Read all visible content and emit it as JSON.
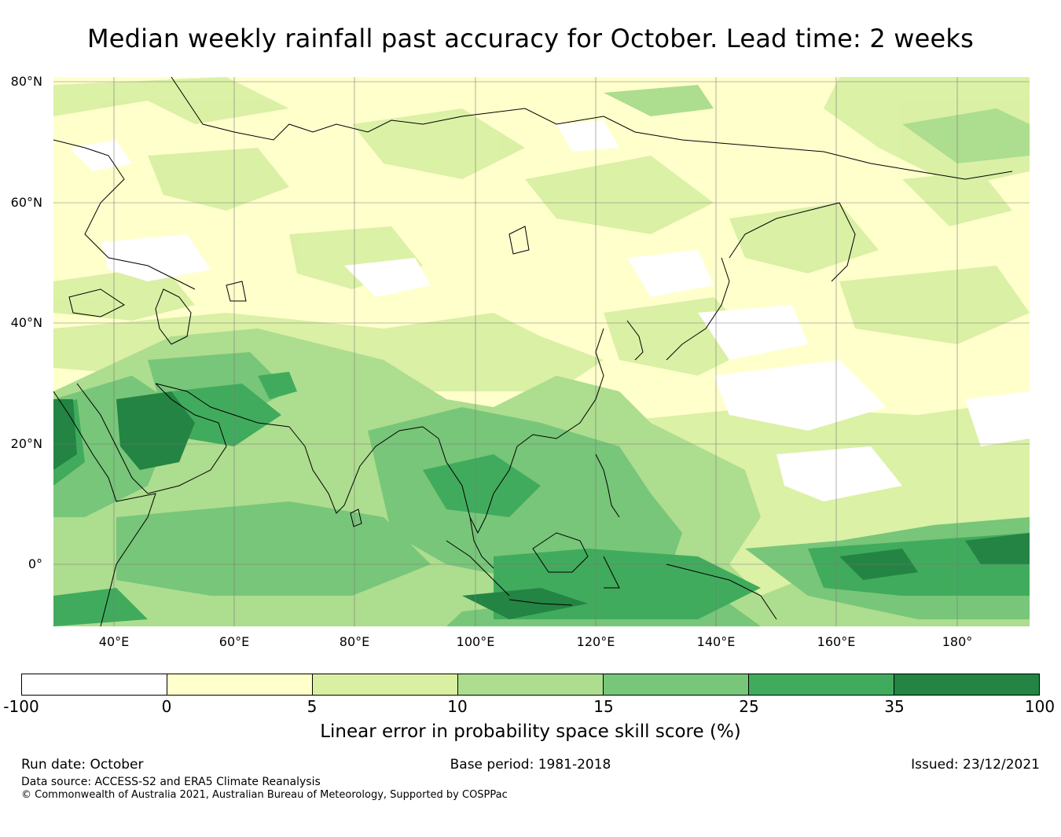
{
  "title": "Median weekly rainfall past accuracy for October. Lead time: 2 weeks",
  "map": {
    "region": "Asia-Pacific",
    "lat_labels": [
      "80°N",
      "60°N",
      "40°N",
      "20°N",
      "0°"
    ],
    "lon_labels": [
      "40°E",
      "60°E",
      "80°E",
      "100°E",
      "120°E",
      "140°E",
      "160°E",
      "180°"
    ]
  },
  "colorbar": {
    "ticks": [
      "-100",
      "0",
      "5",
      "10",
      "15",
      "25",
      "35",
      "100"
    ],
    "colors": [
      "#ffffff",
      "#ffffcc",
      "#d9f0a3",
      "#addd8e",
      "#78c679",
      "#41ab5d",
      "#238443"
    ],
    "label": "Linear error in probability space skill score (%)"
  },
  "footer": {
    "run_date": "Run date: October",
    "base_period": "Base period: 1981-2018",
    "issued": "Issued: 23/12/2021",
    "data_source": "Data source: ACCESS-S2 and ERA5 Climate Reanalysis",
    "copyright": "© Commonwealth of Australia 2021, Australian Bureau of Meteorology, Supported by COSPPac"
  }
}
